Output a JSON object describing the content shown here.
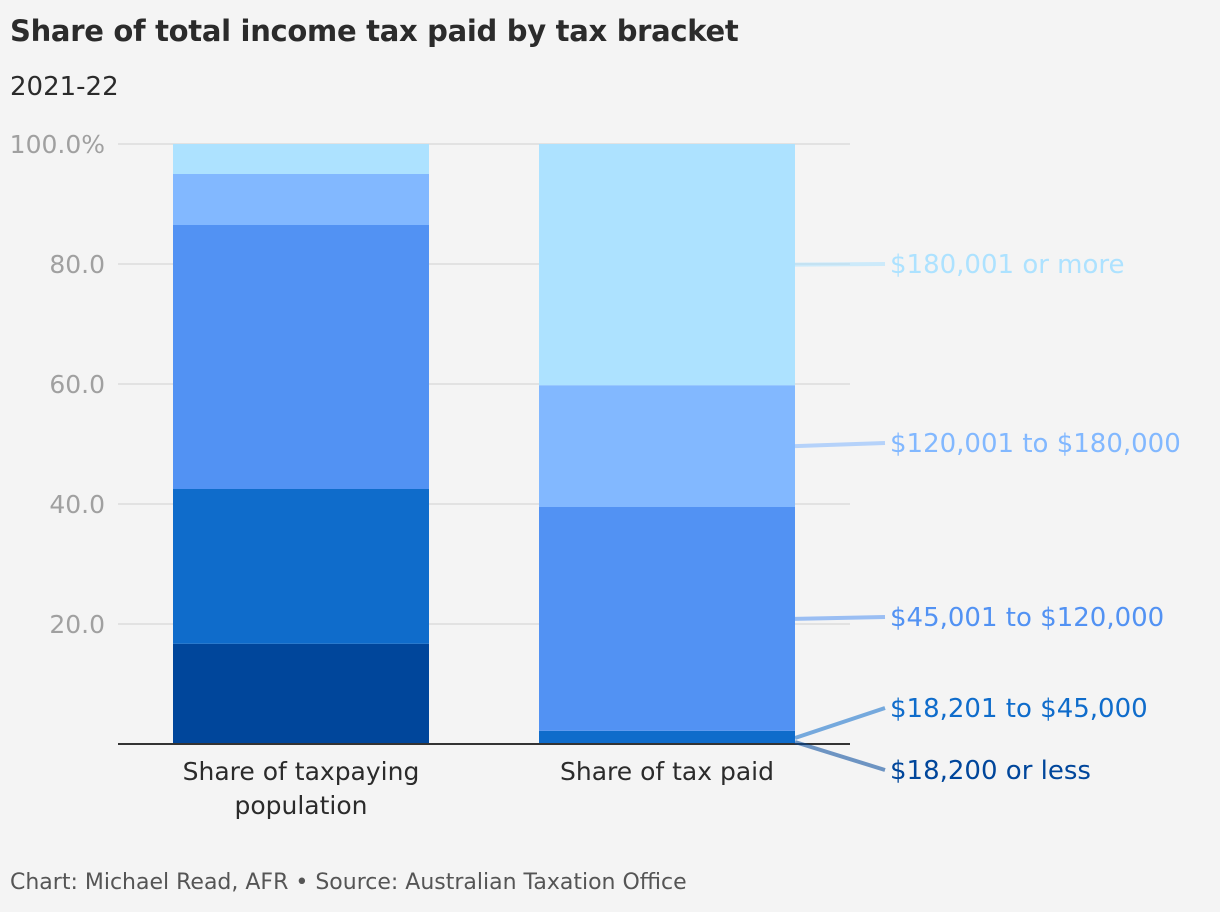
{
  "title": "Share of total income tax paid by tax bracket",
  "subtitle": "2021-22",
  "footer": "Chart: Michael Read, AFR • Source: Australian Taxation Office",
  "chart_data": {
    "type": "bar",
    "stacked": true,
    "categories": [
      "Share of taxpaying population",
      "Share of tax paid"
    ],
    "category_lines": [
      [
        "Share of taxpaying",
        "population"
      ],
      [
        "Share of tax paid"
      ]
    ],
    "ylim": [
      0,
      100
    ],
    "yticks": [
      20,
      40,
      60,
      80,
      100
    ],
    "ytick_labels": [
      "20.0",
      "40.0",
      "60.0",
      "80.0",
      "100.0%"
    ],
    "grid": true,
    "legend": "right-inline-labels",
    "series": [
      {
        "name": "$18,200 or less",
        "values": [
          16.7,
          0.1
        ],
        "color": "#00469b"
      },
      {
        "name": "$18,201 to $45,000",
        "values": [
          25.8,
          2.1
        ],
        "color": "#0f6ccb"
      },
      {
        "name": "$45,001 to $120,000",
        "values": [
          44.0,
          37.3
        ],
        "color": "#5292f3"
      },
      {
        "name": "$120,001 to $180,000",
        "values": [
          8.5,
          20.3
        ],
        "color": "#82b8ff"
      },
      {
        "name": "$180,001 or more",
        "values": [
          5.0,
          40.2
        ],
        "color": "#ade2ff"
      }
    ]
  }
}
